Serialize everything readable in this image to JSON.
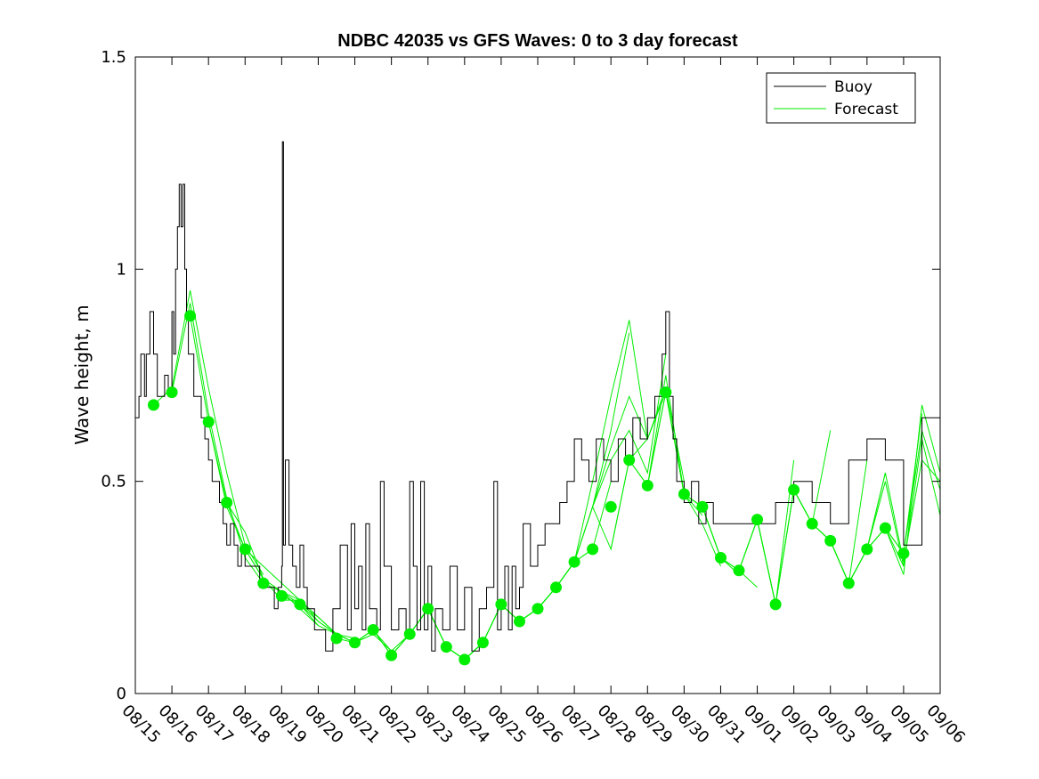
{
  "chart_data": {
    "type": "line",
    "title": "NDBC 42035 vs GFS Waves: 0 to 3 day forecast",
    "xlabel": "",
    "ylabel": "Wave height, m",
    "ylim": [
      0,
      1.5
    ],
    "xlim": [
      0,
      22
    ],
    "y_ticks": [
      0,
      0.5,
      1,
      1.5
    ],
    "y_tick_labels": [
      "0",
      "0.5",
      "1",
      "1.5"
    ],
    "x_ticks": [
      0,
      1,
      2,
      3,
      4,
      5,
      6,
      7,
      8,
      9,
      10,
      11,
      12,
      13,
      14,
      15,
      16,
      17,
      18,
      19,
      20,
      21,
      22
    ],
    "x_tick_labels": [
      "08/15",
      "08/16",
      "08/17",
      "08/18",
      "08/19",
      "08/20",
      "08/21",
      "08/22",
      "08/23",
      "08/24",
      "08/25",
      "08/26",
      "08/27",
      "08/28",
      "08/29",
      "08/30",
      "08/31",
      "09/01",
      "09/02",
      "09/03",
      "09/04",
      "09/05",
      "09/06"
    ],
    "legend": {
      "position": "top-right",
      "entries": [
        {
          "label": "Buoy",
          "color": "#000000"
        },
        {
          "label": "Forecast",
          "color": "#00ee00"
        }
      ]
    },
    "colors": {
      "buoy": "#000000",
      "forecast": "#00ee00",
      "marker": "#00ee00"
    },
    "series": [
      {
        "name": "Buoy",
        "x": [
          0,
          0.1,
          0.15,
          0.25,
          0.3,
          0.4,
          0.5,
          0.6,
          0.7,
          0.8,
          0.9,
          1.0,
          1.05,
          1.1,
          1.15,
          1.2,
          1.25,
          1.3,
          1.35,
          1.4,
          1.45,
          1.5,
          1.6,
          1.7,
          1.8,
          1.9,
          2.0,
          2.1,
          2.2,
          2.3,
          2.4,
          2.5,
          2.6,
          2.7,
          2.8,
          2.9,
          3.0,
          3.2,
          3.4,
          3.6,
          3.8,
          3.9,
          4.0,
          4.02,
          4.05,
          4.1,
          4.2,
          4.3,
          4.4,
          4.5,
          4.6,
          4.7,
          4.8,
          4.9,
          5.0,
          5.2,
          5.4,
          5.6,
          5.8,
          5.9,
          6.0,
          6.1,
          6.2,
          6.3,
          6.4,
          6.6,
          6.7,
          6.8,
          7.0,
          7.2,
          7.4,
          7.5,
          7.6,
          7.7,
          7.8,
          7.9,
          8.0,
          8.1,
          8.2,
          8.4,
          8.6,
          8.8,
          9.0,
          9.2,
          9.4,
          9.6,
          9.8,
          9.9,
          10.0,
          10.1,
          10.2,
          10.3,
          10.4,
          10.5,
          10.6,
          10.8,
          11.0,
          11.2,
          11.4,
          11.6,
          11.8,
          12.0,
          12.2,
          12.4,
          12.6,
          12.8,
          13.0,
          13.2,
          13.4,
          13.6,
          13.8,
          14.0,
          14.2,
          14.4,
          14.5,
          14.6,
          14.7,
          14.8,
          15.0,
          15.2,
          15.4,
          15.6,
          15.8,
          16.0,
          16.5,
          17.0,
          17.5,
          18.0,
          18.5,
          19.0,
          19.5,
          20.0,
          20.5,
          21.0,
          21.5,
          22.0
        ],
        "values": [
          0.65,
          0.7,
          0.8,
          0.7,
          0.8,
          0.9,
          0.8,
          0.7,
          0.7,
          0.75,
          0.7,
          0.9,
          0.8,
          1.0,
          1.1,
          1.2,
          1.1,
          1.2,
          1.0,
          0.9,
          0.8,
          0.8,
          0.7,
          0.7,
          0.65,
          0.6,
          0.55,
          0.5,
          0.5,
          0.45,
          0.4,
          0.35,
          0.4,
          0.35,
          0.3,
          0.35,
          0.3,
          0.3,
          0.25,
          0.25,
          0.2,
          0.25,
          0.3,
          1.3,
          0.35,
          0.55,
          0.35,
          0.3,
          0.25,
          0.35,
          0.25,
          0.2,
          0.2,
          0.15,
          0.15,
          0.1,
          0.2,
          0.35,
          0.15,
          0.4,
          0.2,
          0.3,
          0.15,
          0.4,
          0.2,
          0.15,
          0.5,
          0.3,
          0.15,
          0.2,
          0.15,
          0.5,
          0.3,
          0.15,
          0.5,
          0.15,
          0.3,
          0.1,
          0.2,
          0.15,
          0.3,
          0.15,
          0.25,
          0.1,
          0.2,
          0.25,
          0.5,
          0.15,
          0.2,
          0.3,
          0.15,
          0.3,
          0.2,
          0.25,
          0.4,
          0.3,
          0.35,
          0.4,
          0.4,
          0.45,
          0.5,
          0.6,
          0.55,
          0.5,
          0.6,
          0.55,
          0.5,
          0.6,
          0.55,
          0.65,
          0.6,
          0.65,
          0.7,
          0.8,
          0.9,
          0.7,
          0.6,
          0.5,
          0.45,
          0.5,
          0.4,
          0.45,
          0.4,
          0.4,
          0.4,
          0.4,
          0.45,
          0.5,
          0.45,
          0.4,
          0.55,
          0.6,
          0.55,
          0.35,
          0.65,
          0.5
        ]
      }
    ],
    "forecast_runs": [
      {
        "x": [
          0.5,
          1,
          1.5,
          2,
          2.5,
          3,
          3.5
        ],
        "values": [
          0.68,
          0.72,
          0.95,
          0.72,
          0.52,
          0.35,
          0.28
        ]
      },
      {
        "x": [
          1,
          1.5,
          2,
          2.5,
          3,
          3.5,
          4
        ],
        "values": [
          0.71,
          0.92,
          0.66,
          0.46,
          0.32,
          0.26,
          0.24
        ]
      },
      {
        "x": [
          1.5,
          2,
          2.5,
          3,
          3.5,
          4,
          4.5
        ],
        "values": [
          0.89,
          0.64,
          0.44,
          0.34,
          0.27,
          0.22,
          0.22
        ]
      },
      {
        "x": [
          2,
          2.5,
          3,
          3.5,
          4,
          4.5,
          5
        ],
        "values": [
          0.64,
          0.45,
          0.38,
          0.27,
          0.24,
          0.2,
          0.16
        ]
      },
      {
        "x": [
          2.5,
          3,
          3.5,
          4,
          4.5,
          5,
          5.5
        ],
        "values": [
          0.45,
          0.34,
          0.3,
          0.26,
          0.22,
          0.18,
          0.14
        ]
      },
      {
        "x": [
          3,
          3.5,
          4,
          4.5,
          5,
          5.5,
          6
        ],
        "values": [
          0.34,
          0.27,
          0.24,
          0.22,
          0.17,
          0.14,
          0.13
        ]
      },
      {
        "x": [
          3.5,
          4,
          4.5,
          5,
          5.5,
          6,
          6.5
        ],
        "values": [
          0.26,
          0.24,
          0.21,
          0.16,
          0.14,
          0.12,
          0.14
        ]
      },
      {
        "x": [
          4,
          4.5,
          5,
          5.5,
          6,
          6.5,
          7
        ],
        "values": [
          0.23,
          0.21,
          0.18,
          0.14,
          0.12,
          0.14,
          0.1
        ]
      },
      {
        "x": [
          4.5,
          5,
          5.5,
          6,
          6.5,
          7,
          7.5
        ],
        "values": [
          0.21,
          0.17,
          0.14,
          0.12,
          0.15,
          0.1,
          0.14
        ]
      },
      {
        "x": [
          5.5,
          6,
          6.5,
          7,
          7.5,
          8,
          8.5
        ],
        "values": [
          0.13,
          0.12,
          0.15,
          0.09,
          0.14,
          0.2,
          0.11
        ]
      },
      {
        "x": [
          6,
          6.5,
          7,
          7.5,
          8,
          8.5,
          9
        ],
        "values": [
          0.12,
          0.15,
          0.09,
          0.14,
          0.2,
          0.11,
          0.08
        ]
      },
      {
        "x": [
          6.5,
          7,
          7.5,
          8,
          8.5,
          9,
          9.5
        ],
        "values": [
          0.15,
          0.09,
          0.14,
          0.2,
          0.11,
          0.08,
          0.12
        ]
      },
      {
        "x": [
          7,
          7.5,
          8,
          8.5,
          9,
          9.5,
          10
        ],
        "values": [
          0.09,
          0.14,
          0.2,
          0.11,
          0.08,
          0.12,
          0.21
        ]
      },
      {
        "x": [
          7.5,
          8,
          8.5,
          9,
          9.5,
          10,
          10.5
        ],
        "values": [
          0.14,
          0.2,
          0.11,
          0.08,
          0.12,
          0.21,
          0.17
        ]
      },
      {
        "x": [
          8,
          8.5,
          9,
          9.5,
          10,
          10.5,
          11
        ],
        "values": [
          0.2,
          0.11,
          0.08,
          0.12,
          0.21,
          0.17,
          0.2
        ]
      },
      {
        "x": [
          8.5,
          9,
          9.5,
          10,
          10.5,
          11,
          11.5
        ],
        "values": [
          0.11,
          0.08,
          0.12,
          0.21,
          0.17,
          0.2,
          0.25
        ]
      },
      {
        "x": [
          9,
          9.5,
          10,
          10.5,
          11,
          11.5,
          12
        ],
        "values": [
          0.08,
          0.12,
          0.21,
          0.17,
          0.2,
          0.25,
          0.31
        ]
      },
      {
        "x": [
          9.5,
          10,
          10.5,
          11,
          11.5,
          12,
          12.5
        ],
        "values": [
          0.12,
          0.21,
          0.17,
          0.2,
          0.25,
          0.31,
          0.34
        ]
      },
      {
        "x": [
          10,
          10.5,
          11,
          11.5,
          12,
          12.5,
          13
        ],
        "values": [
          0.21,
          0.17,
          0.2,
          0.25,
          0.31,
          0.34,
          0.5
        ]
      },
      {
        "x": [
          10.5,
          11,
          11.5,
          12,
          12.5,
          13,
          13.5
        ],
        "values": [
          0.17,
          0.2,
          0.25,
          0.31,
          0.44,
          0.62,
          0.85
        ]
      },
      {
        "x": [
          11,
          11.5,
          12,
          12.5,
          13,
          13.5,
          14
        ],
        "values": [
          0.2,
          0.25,
          0.31,
          0.5,
          0.7,
          0.88,
          0.6
        ]
      },
      {
        "x": [
          11.5,
          12,
          12.5,
          13,
          13.5,
          14,
          14.5
        ],
        "values": [
          0.25,
          0.31,
          0.44,
          0.55,
          0.62,
          0.52,
          0.8
        ]
      },
      {
        "x": [
          12,
          12.5,
          13,
          13.5,
          14,
          14.5,
          15
        ],
        "values": [
          0.31,
          0.44,
          0.58,
          0.7,
          0.6,
          0.72,
          0.5
        ]
      },
      {
        "x": [
          12.5,
          13,
          13.5,
          14,
          14.5,
          15,
          15.5
        ],
        "values": [
          0.44,
          0.34,
          0.55,
          0.6,
          0.71,
          0.47,
          0.42
        ]
      },
      {
        "x": [
          13,
          13.5,
          14,
          14.5,
          15,
          15.5,
          16
        ],
        "values": [
          0.34,
          0.55,
          0.49,
          0.75,
          0.47,
          0.4,
          0.3
        ]
      },
      {
        "x": [
          13.5,
          14,
          14.5,
          15,
          15.5,
          16,
          16.5
        ],
        "values": [
          0.55,
          0.49,
          0.71,
          0.47,
          0.44,
          0.32,
          0.28
        ]
      },
      {
        "x": [
          14,
          14.5,
          15,
          15.5,
          16,
          16.5,
          17
        ],
        "values": [
          0.49,
          0.71,
          0.47,
          0.44,
          0.32,
          0.29,
          0.25
        ]
      },
      {
        "x": [
          14.5,
          15,
          15.5,
          16,
          16.5,
          17,
          17.5
        ],
        "values": [
          0.71,
          0.47,
          0.44,
          0.32,
          0.29,
          0.41,
          0.21
        ]
      },
      {
        "x": [
          15,
          15.5,
          16,
          16.5,
          17,
          17.5,
          18
        ],
        "values": [
          0.47,
          0.44,
          0.32,
          0.29,
          0.41,
          0.21,
          0.55
        ]
      },
      {
        "x": [
          16,
          16.5,
          17,
          17.5,
          18,
          18.5,
          19
        ],
        "values": [
          0.32,
          0.29,
          0.41,
          0.21,
          0.48,
          0.4,
          0.62
        ]
      },
      {
        "x": [
          17,
          17.5,
          18,
          18.5,
          19,
          19.5,
          20
        ],
        "values": [
          0.41,
          0.21,
          0.48,
          0.4,
          0.36,
          0.26,
          0.55
        ]
      },
      {
        "x": [
          17.5,
          18,
          18.5,
          19,
          19.5,
          20,
          20.5
        ],
        "values": [
          0.21,
          0.48,
          0.4,
          0.36,
          0.26,
          0.34,
          0.52
        ]
      },
      {
        "x": [
          18,
          18.5,
          19,
          19.5,
          20,
          20.5,
          21
        ],
        "values": [
          0.48,
          0.4,
          0.36,
          0.26,
          0.34,
          0.39,
          0.3
        ]
      },
      {
        "x": [
          18.5,
          19,
          19.5,
          20,
          20.5,
          21,
          21.5
        ],
        "values": [
          0.4,
          0.36,
          0.26,
          0.34,
          0.39,
          0.33,
          0.66
        ]
      },
      {
        "x": [
          19,
          19.5,
          20,
          20.5,
          21,
          21.5,
          22
        ],
        "values": [
          0.36,
          0.26,
          0.34,
          0.39,
          0.33,
          0.62,
          0.48
        ]
      },
      {
        "x": [
          19.5,
          20,
          20.5,
          21,
          21.5,
          22
        ],
        "values": [
          0.26,
          0.34,
          0.5,
          0.3,
          0.6,
          0.42
        ]
      },
      {
        "x": [
          20,
          20.5,
          21,
          21.5,
          22
        ],
        "values": [
          0.34,
          0.52,
          0.31,
          0.55,
          0.5
        ]
      },
      {
        "x": [
          20.5,
          21,
          21.5,
          22
        ],
        "values": [
          0.39,
          0.28,
          0.68,
          0.52
        ]
      }
    ],
    "forecast_markers": {
      "x": [
        0.5,
        1,
        1.5,
        2,
        2.5,
        3,
        3.5,
        4,
        4.5,
        5.5,
        6,
        6.5,
        7,
        7.5,
        8,
        8.5,
        9,
        9.5,
        10,
        10.5,
        11,
        11.5,
        12,
        12.5,
        13,
        13.5,
        14,
        14.5,
        15,
        15.5,
        16,
        16.5,
        17,
        17.5,
        18,
        18.5,
        19,
        19.5,
        20,
        20.5,
        21
      ],
      "values": [
        0.68,
        0.71,
        0.89,
        0.64,
        0.45,
        0.34,
        0.26,
        0.23,
        0.21,
        0.13,
        0.12,
        0.15,
        0.09,
        0.14,
        0.2,
        0.11,
        0.08,
        0.12,
        0.21,
        0.17,
        0.2,
        0.25,
        0.31,
        0.34,
        0.44,
        0.55,
        0.49,
        0.71,
        0.47,
        0.44,
        0.32,
        0.29,
        0.41,
        0.21,
        0.48,
        0.4,
        0.36,
        0.26,
        0.34,
        0.39,
        0.33
      ]
    }
  }
}
